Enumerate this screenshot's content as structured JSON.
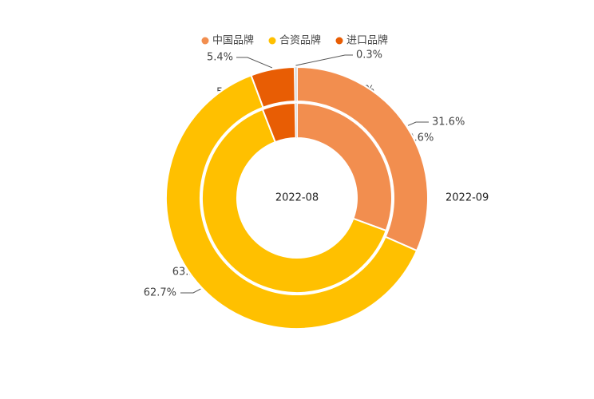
{
  "chart_data": {
    "type": "pie",
    "subtype": "nested-donut",
    "legend": {
      "placement": "top-center",
      "items": [
        {
          "label": "中国品牌",
          "color": "#F28E4F"
        },
        {
          "label": "合资品牌",
          "color": "#FFC000"
        },
        {
          "label": "进口品牌",
          "color": "#E85D04"
        }
      ]
    },
    "categories": [
      "中国品牌",
      "合资品牌",
      "进口品牌"
    ],
    "series": [
      {
        "ring": "inner",
        "name": "2022-08",
        "values": [
          30.6,
          63.5,
          5.6
        ],
        "labels": [
          "30.6%",
          "63.5%",
          "5.6%"
        ],
        "small_slice": {
          "value": 0.3,
          "label": "0.3%"
        }
      },
      {
        "ring": "outer",
        "name": "2022-09",
        "values": [
          31.6,
          62.7,
          5.4
        ],
        "labels": [
          "31.6%",
          "62.7%",
          "5.4%"
        ],
        "small_slice": {
          "value": 0.3,
          "label": "0.3%"
        }
      }
    ]
  }
}
